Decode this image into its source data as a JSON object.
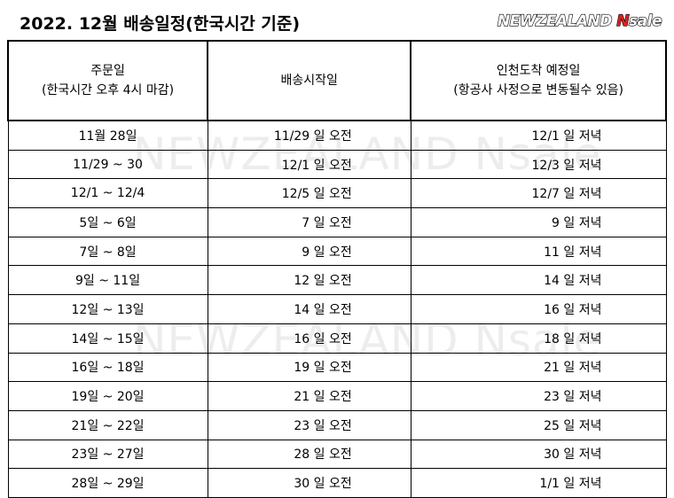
{
  "header": {
    "title": "2022. 12월 배송일정(한국시간 기준)",
    "logo": {
      "text": "NEWZEALAND",
      "accent": "N",
      "suffix": "sale"
    }
  },
  "watermark": "NEWZEALAND Nsale",
  "table": {
    "columns": [
      [
        "주문일",
        "(한국시간 오후 4시 마감)"
      ],
      [
        "배송시작일"
      ],
      [
        "인천도착 예정일",
        "(항공사 사정으로 변동될수 있음)"
      ]
    ],
    "rows": [
      [
        "11월 28일",
        "11/29 일 오전",
        "12/1 일 저녁"
      ],
      [
        "11/29 ~ 30",
        "12/1 일 오전",
        "12/3 일 저녁"
      ],
      [
        "12/1 ~ 12/4",
        "12/5 일 오전",
        "12/7 일 저녁"
      ],
      [
        "5일 ~ 6일",
        "7 일 오전",
        "9 일 저녁"
      ],
      [
        "7일 ~ 8일",
        "9 일 오전",
        "11 일 저녁"
      ],
      [
        "9일 ~ 11일",
        "12 일 오전",
        "14 일 저녁"
      ],
      [
        "12일 ~ 13일",
        "14 일 오전",
        "16 일 저녁"
      ],
      [
        "14일 ~ 15일",
        "16 일 오전",
        "18 일 저녁"
      ],
      [
        "16일 ~ 18일",
        "19 일 오전",
        "21 일 저녁"
      ],
      [
        "19일 ~ 20일",
        "21 일 오전",
        "23 일 저녁"
      ],
      [
        "21일 ~ 22일",
        "23 일 오전",
        "25 일 저녁"
      ],
      [
        "23일 ~ 27일",
        "28 일 오전",
        "30 일 저녁"
      ],
      [
        "28일 ~ 29일",
        "30 일 오전",
        "1/1 일 저녁"
      ]
    ]
  }
}
